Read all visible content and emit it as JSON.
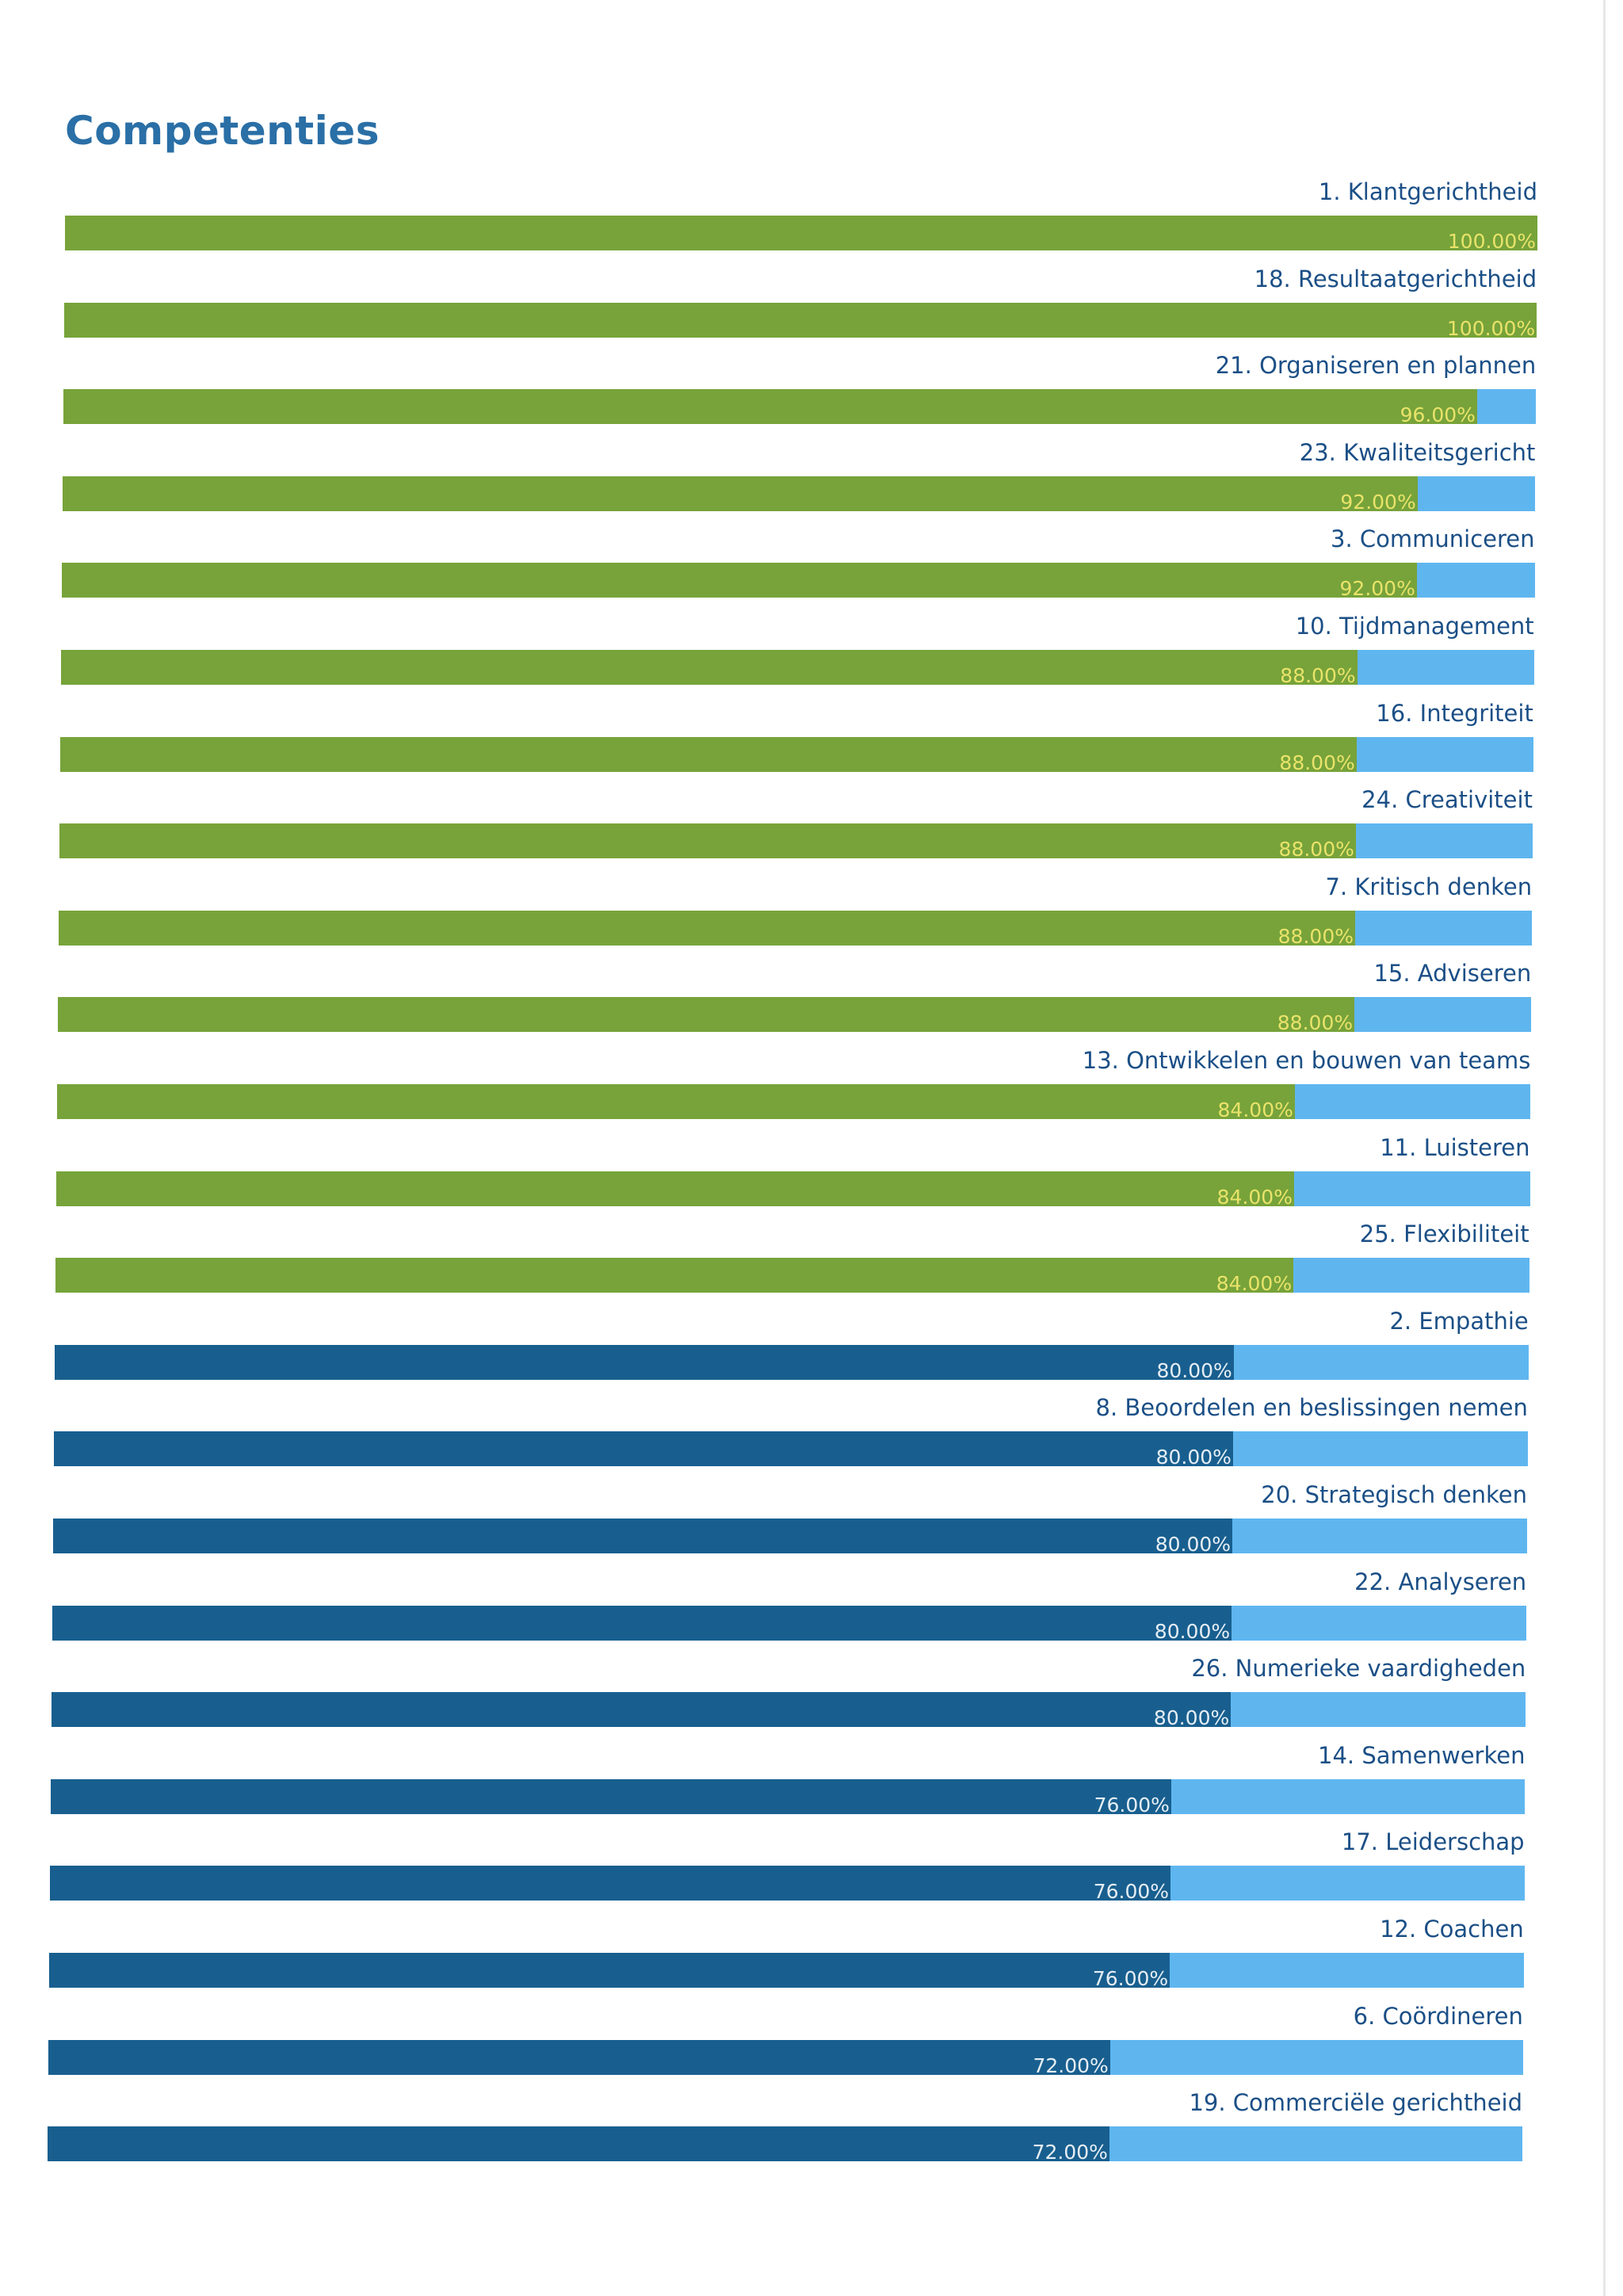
{
  "page": {
    "title": "Competenties"
  },
  "colors": {
    "title": "#2a6fa6",
    "label_text": "#1b4f86",
    "track": "#5fb6ef",
    "fill_high": "#77a33a",
    "fill_low": "#185f8f",
    "value_text_high": "#e9e36a",
    "value_text_low": "#e6eef5"
  },
  "chart_data": {
    "type": "bar",
    "orientation": "horizontal",
    "xlim": [
      0,
      100
    ],
    "unit": "%",
    "legend": "none",
    "grid": false,
    "categories": [
      "1. Klantgerichtheid",
      "18. Resultaatgerichtheid",
      "21. Organiseren en plannen",
      "23. Kwaliteitsgericht",
      "3. Communiceren",
      "10. Tijdmanagement",
      "16. Integriteit",
      "24. Creativiteit",
      "7. Kritisch denken",
      "15. Adviseren",
      "13. Ontwikkelen en bouwen van teams",
      "11. Luisteren",
      "25. Flexibiliteit",
      "2. Empathie",
      "8. Beoordelen en beslissingen nemen",
      "20. Strategisch denken",
      "22. Analyseren",
      "26. Numerieke vaardigheden",
      "14. Samenwerken",
      "17. Leiderschap",
      "12. Coachen",
      "6. Coördineren",
      "19. Commerciële gerichtheid"
    ],
    "values": [
      100,
      100,
      96,
      92,
      92,
      88,
      88,
      88,
      88,
      88,
      84,
      84,
      84,
      80,
      80,
      80,
      80,
      80,
      76,
      76,
      76,
      72,
      72
    ],
    "value_labels": [
      "100.00%",
      "100.00%",
      "96.00%",
      "92.00%",
      "92.00%",
      "88.00%",
      "88.00%",
      "88.00%",
      "88.00%",
      "88.00%",
      "84.00%",
      "84.00%",
      "84.00%",
      "80.00%",
      "80.00%",
      "80.00%",
      "80.00%",
      "80.00%",
      "76.00%",
      "76.00%",
      "76.00%",
      "72.00%",
      "72.00%"
    ],
    "color_threshold": 84
  }
}
